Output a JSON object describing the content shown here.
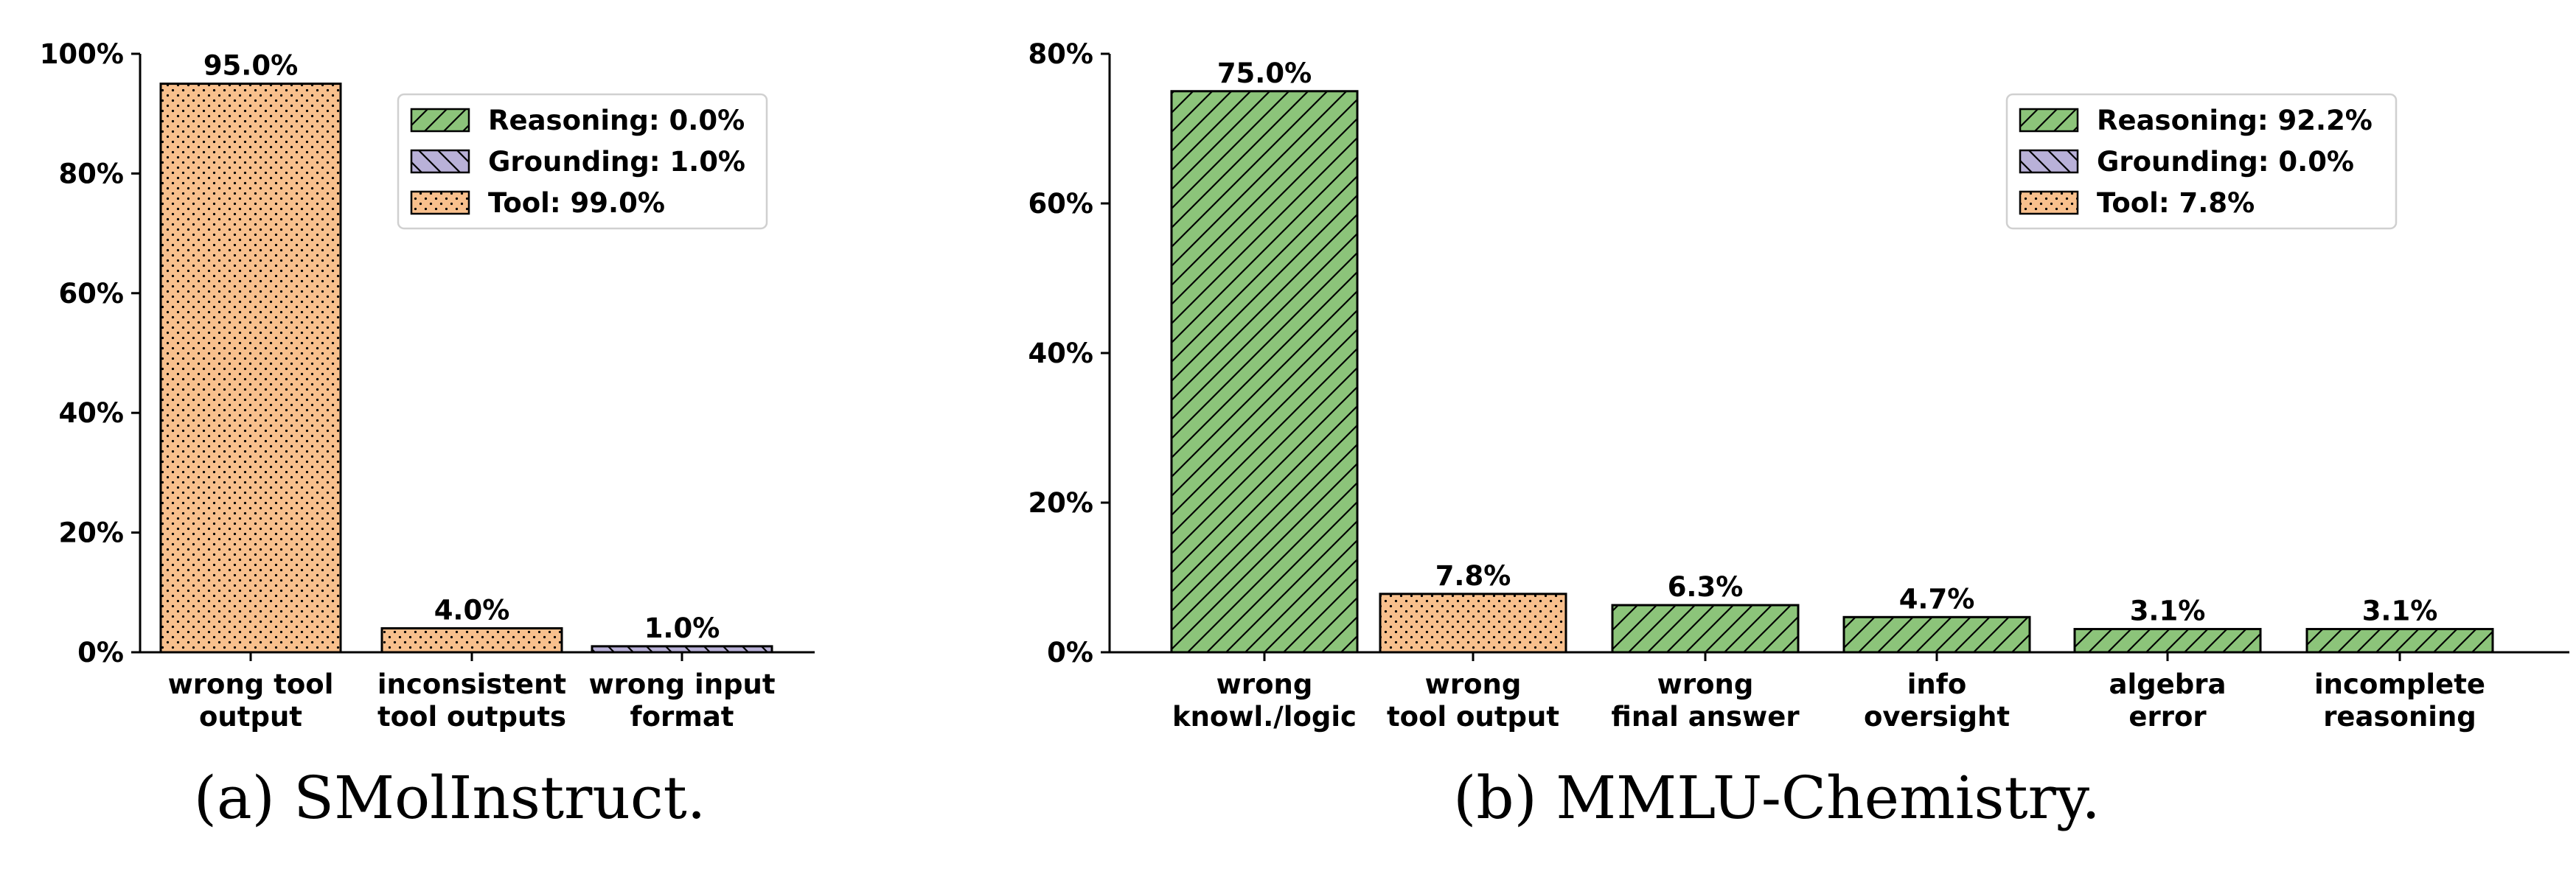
{
  "colors": {
    "Reasoning": "#8cc47a",
    "Grounding": "#b9b1d8",
    "Tool": "#f8c08d",
    "edge": "#000000"
  },
  "chart_data": [
    {
      "type": "bar",
      "caption": "(a) SMolInstruct.",
      "categories": [
        [
          "wrong tool",
          "output"
        ],
        [
          "inconsistent",
          "tool outputs"
        ],
        [
          "wrong input",
          "format"
        ]
      ],
      "values": [
        95.0,
        4.0,
        1.0
      ],
      "value_labels": [
        "95.0%",
        "4.0%",
        "1.0%"
      ],
      "bar_types": [
        "Tool",
        "Tool",
        "Grounding"
      ],
      "ylim": [
        0,
        100
      ],
      "yticks": [
        0,
        20,
        40,
        60,
        80,
        100
      ],
      "ytick_labels": [
        "0%",
        "20%",
        "40%",
        "60%",
        "80%",
        "100%"
      ],
      "legend": [
        {
          "type": "Reasoning",
          "label": "Reasoning: 0.0%"
        },
        {
          "type": "Grounding",
          "label": "Grounding: 1.0%"
        },
        {
          "type": "Tool",
          "label": "Tool: 99.0%"
        }
      ],
      "legend_position": "top-right",
      "grid": false
    },
    {
      "type": "bar",
      "caption": "(b) MMLU-Chemistry.",
      "categories": [
        [
          "wrong",
          "knowl./logic"
        ],
        [
          "wrong",
          "tool output"
        ],
        [
          "wrong",
          "final answer"
        ],
        [
          "info",
          "oversight"
        ],
        [
          "algebra",
          "error"
        ],
        [
          "incomplete",
          "reasoning"
        ]
      ],
      "values": [
        75.0,
        7.8,
        6.3,
        4.7,
        3.1,
        3.1
      ],
      "value_labels": [
        "75.0%",
        "7.8%",
        "6.3%",
        "4.7%",
        "3.1%",
        "3.1%"
      ],
      "bar_types": [
        "Reasoning",
        "Tool",
        "Reasoning",
        "Reasoning",
        "Reasoning",
        "Reasoning"
      ],
      "ylim": [
        0,
        80
      ],
      "yticks": [
        0,
        20,
        40,
        60,
        80
      ],
      "ytick_labels": [
        "0%",
        "20%",
        "40%",
        "60%",
        "80%"
      ],
      "legend": [
        {
          "type": "Reasoning",
          "label": "Reasoning: 92.2%"
        },
        {
          "type": "Grounding",
          "label": "Grounding: 0.0%"
        },
        {
          "type": "Tool",
          "label": "Tool: 7.8%"
        }
      ],
      "legend_position": "top-right",
      "grid": false
    }
  ]
}
